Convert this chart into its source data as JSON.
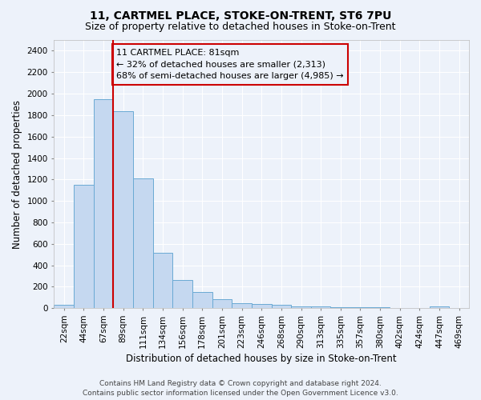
{
  "title1": "11, CARTMEL PLACE, STOKE-ON-TRENT, ST6 7PU",
  "title2": "Size of property relative to detached houses in Stoke-on-Trent",
  "xlabel": "Distribution of detached houses by size in Stoke-on-Trent",
  "ylabel": "Number of detached properties",
  "bin_labels": [
    "22sqm",
    "44sqm",
    "67sqm",
    "89sqm",
    "111sqm",
    "134sqm",
    "156sqm",
    "178sqm",
    "201sqm",
    "223sqm",
    "246sqm",
    "268sqm",
    "290sqm",
    "313sqm",
    "335sqm",
    "357sqm",
    "380sqm",
    "402sqm",
    "424sqm",
    "447sqm",
    "469sqm"
  ],
  "bar_heights": [
    30,
    1150,
    1950,
    1840,
    1210,
    520,
    265,
    155,
    85,
    45,
    40,
    35,
    20,
    20,
    10,
    10,
    10,
    5,
    5,
    20,
    0
  ],
  "bar_color": "#c5d8f0",
  "bar_edge_color": "#6aaad4",
  "annotation_text": "11 CARTMEL PLACE: 81sqm\n← 32% of detached houses are smaller (2,313)\n68% of semi-detached houses are larger (4,985) →",
  "vline_index": 2.5,
  "vline_color": "#cc0000",
  "ylim": [
    0,
    2500
  ],
  "yticks": [
    0,
    200,
    400,
    600,
    800,
    1000,
    1200,
    1400,
    1600,
    1800,
    2000,
    2200,
    2400
  ],
  "footer1": "Contains HM Land Registry data © Crown copyright and database right 2024.",
  "footer2": "Contains public sector information licensed under the Open Government Licence v3.0.",
  "bg_color": "#edf2fa",
  "grid_color": "#ffffff",
  "title1_fontsize": 10,
  "title2_fontsize": 9,
  "xlabel_fontsize": 8.5,
  "ylabel_fontsize": 8.5,
  "tick_fontsize": 7.5,
  "annotation_fontsize": 8,
  "footer_fontsize": 6.5
}
